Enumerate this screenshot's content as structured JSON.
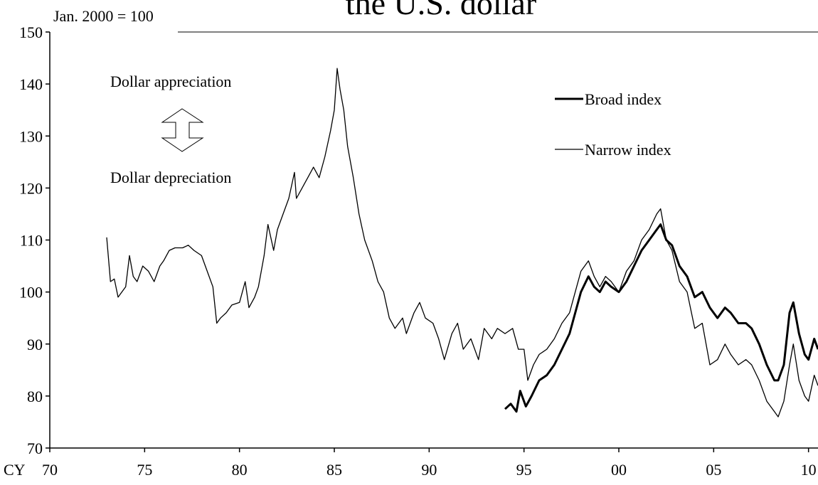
{
  "chart_data": {
    "type": "line",
    "title": "the U.S. dollar",
    "y_note": "Jan. 2000 = 100",
    "x_axis_prefix": "CY",
    "annotations": [
      "Dollar appreciation",
      "Dollar depreciation"
    ],
    "legend": "upper right",
    "xlim": [
      1970,
      2010.5
    ],
    "ylim": [
      70,
      150
    ],
    "yticks": [
      70,
      80,
      90,
      100,
      110,
      120,
      130,
      140,
      150
    ],
    "xticks": [
      {
        "value": 1970,
        "label": "70"
      },
      {
        "value": 1975,
        "label": "75"
      },
      {
        "value": 1980,
        "label": "80"
      },
      {
        "value": 1985,
        "label": "85"
      },
      {
        "value": 1990,
        "label": "90"
      },
      {
        "value": 1995,
        "label": "95"
      },
      {
        "value": 2000,
        "label": "00"
      },
      {
        "value": 2005,
        "label": "05"
      },
      {
        "value": 2010,
        "label": "10"
      }
    ],
    "series": [
      {
        "name": "Broad index",
        "color": "#000000",
        "width": 3,
        "x": [
          1994.0,
          1994.3,
          1994.6,
          1994.8,
          1995.1,
          1995.4,
          1995.8,
          1996.2,
          1996.6,
          1997.0,
          1997.4,
          1997.7,
          1998.0,
          1998.4,
          1998.7,
          1999.0,
          1999.3,
          1999.6,
          2000.0,
          2000.4,
          2000.8,
          2001.2,
          2001.6,
          2002.0,
          2002.2,
          2002.5,
          2002.8,
          2003.2,
          2003.6,
          2004.0,
          2004.4,
          2004.8,
          2005.2,
          2005.6,
          2005.9,
          2006.3,
          2006.7,
          2007.0,
          2007.4,
          2007.8,
          2008.2,
          2008.4,
          2008.7,
          2009.0,
          2009.2,
          2009.5,
          2009.8,
          2010.0,
          2010.3,
          2010.5
        ],
        "values": [
          77.5,
          78.5,
          77,
          81,
          78,
          80,
          83,
          84,
          86,
          89,
          92,
          96,
          100,
          103,
          101,
          100,
          102,
          101,
          100,
          102,
          105,
          108,
          110,
          112,
          113,
          110,
          109,
          105,
          103,
          99,
          100,
          97,
          95,
          97,
          96,
          94,
          94,
          93,
          90,
          86,
          83,
          83,
          86,
          96,
          98,
          92,
          88,
          87,
          91,
          89
        ]
      },
      {
        "name": "Narrow index",
        "color": "#000000",
        "width": 1.3,
        "x": [
          1973.0,
          1973.2,
          1973.4,
          1973.6,
          1973.8,
          1974.0,
          1974.2,
          1974.4,
          1974.6,
          1974.9,
          1975.2,
          1975.5,
          1975.8,
          1976.0,
          1976.3,
          1976.6,
          1977.0,
          1977.3,
          1977.6,
          1978.0,
          1978.3,
          1978.6,
          1978.8,
          1979.0,
          1979.3,
          1979.6,
          1980.0,
          1980.3,
          1980.5,
          1980.8,
          1981.0,
          1981.3,
          1981.5,
          1981.8,
          1982.0,
          1982.3,
          1982.6,
          1982.9,
          1983.0,
          1983.3,
          1983.6,
          1983.9,
          1984.2,
          1984.5,
          1984.8,
          1985.0,
          1985.15,
          1985.3,
          1985.5,
          1985.7,
          1986.0,
          1986.3,
          1986.6,
          1987.0,
          1987.3,
          1987.6,
          1987.9,
          1988.2,
          1988.6,
          1988.8,
          1989.2,
          1989.5,
          1989.8,
          1990.2,
          1990.5,
          1990.8,
          1991.2,
          1991.5,
          1991.8,
          1992.2,
          1992.6,
          1992.9,
          1993.3,
          1993.6,
          1994.0,
          1994.4,
          1994.7,
          1995.0,
          1995.2,
          1995.5,
          1995.8,
          1996.2,
          1996.6,
          1997.0,
          1997.4,
          1997.7,
          1998.0,
          1998.4,
          1998.7,
          1999.0,
          1999.3,
          1999.6,
          2000.0,
          2000.4,
          2000.8,
          2001.2,
          2001.6,
          2002.0,
          2002.2,
          2002.5,
          2002.8,
          2003.2,
          2003.6,
          2004.0,
          2004.4,
          2004.8,
          2005.2,
          2005.6,
          2005.9,
          2006.3,
          2006.7,
          2007.0,
          2007.4,
          2007.8,
          2008.2,
          2008.4,
          2008.7,
          2009.0,
          2009.2,
          2009.5,
          2009.8,
          2010.0,
          2010.3,
          2010.5
        ],
        "values": [
          110.5,
          102,
          102.5,
          99,
          100,
          101,
          107,
          103,
          102,
          105,
          104,
          102,
          105,
          106,
          108,
          108.5,
          108.5,
          109,
          108,
          107,
          104,
          101,
          94,
          95,
          96,
          97.5,
          98,
          102,
          97,
          99,
          101,
          107,
          113,
          108,
          112,
          115,
          118,
          123,
          118,
          120,
          122,
          124,
          122,
          126,
          131,
          135,
          143,
          139,
          135,
          128,
          122,
          115,
          110,
          106,
          102,
          100,
          95,
          93,
          95,
          92,
          96,
          98,
          95,
          94,
          91,
          87,
          92,
          94,
          89,
          91,
          87,
          93,
          91,
          93,
          92,
          93,
          89,
          89,
          83,
          86,
          88,
          89,
          91,
          94,
          96,
          100,
          104,
          106,
          103,
          101,
          103,
          102,
          100,
          104,
          106,
          110,
          112,
          115,
          116,
          110,
          108,
          102,
          100,
          93,
          94,
          86,
          87,
          90,
          88,
          86,
          87,
          86,
          83,
          79,
          77,
          76,
          79,
          86,
          90,
          83,
          80,
          79,
          84,
          82
        ]
      }
    ]
  }
}
